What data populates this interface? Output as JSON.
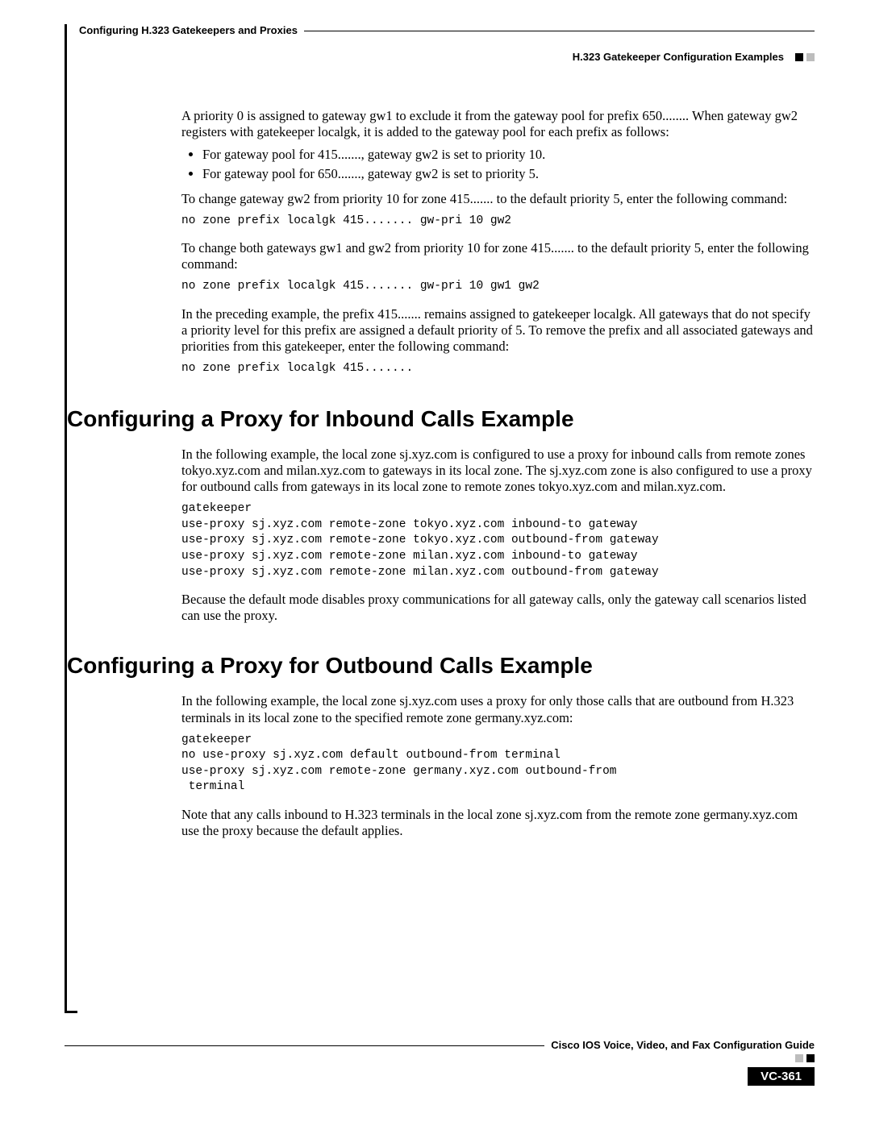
{
  "header": {
    "chapter_title": "Configuring H.323 Gatekeepers and Proxies",
    "section_title": "H.323 Gatekeeper Configuration Examples"
  },
  "body": {
    "p1": "A priority 0 is assigned to gateway gw1 to exclude it from the gateway pool for prefix 650........ When gateway gw2 registers with gatekeeper localgk, it is added to the gateway pool for each prefix as follows:",
    "bullets": [
      "For gateway pool for 415......., gateway gw2 is set to priority 10.",
      "For gateway pool for 650......., gateway gw2 is set to priority 5."
    ],
    "p2": "To change gateway gw2 from priority 10 for zone 415....... to the default priority 5, enter the following command:",
    "code1": "no zone prefix localgk 415....... gw-pri 10 gw2",
    "p3": "To change both gateways gw1 and gw2 from priority 10 for zone 415....... to the default priority 5, enter the following command:",
    "code2": "no zone prefix localgk 415....... gw-pri 10 gw1 gw2",
    "p4": "In the preceding example, the prefix 415....... remains assigned to gatekeeper localgk. All gateways that do not specify a priority level for this prefix are assigned a default priority of 5. To remove the prefix and all associated gateways and priorities from this gatekeeper, enter the following command:",
    "code3": "no zone prefix localgk 415......."
  },
  "section_inbound": {
    "heading": "Configuring a Proxy for Inbound Calls Example",
    "p1": "In the following example, the local zone sj.xyz.com is configured to use a proxy for inbound calls from remote zones tokyo.xyz.com and milan.xyz.com to gateways in its local zone. The sj.xyz.com zone is also configured to use a proxy for outbound calls from gateways in its local zone to remote zones tokyo.xyz.com and milan.xyz.com.",
    "code": "gatekeeper\nuse-proxy sj.xyz.com remote-zone tokyo.xyz.com inbound-to gateway\nuse-proxy sj.xyz.com remote-zone tokyo.xyz.com outbound-from gateway\nuse-proxy sj.xyz.com remote-zone milan.xyz.com inbound-to gateway\nuse-proxy sj.xyz.com remote-zone milan.xyz.com outbound-from gateway",
    "p2": "Because the default mode disables proxy communications for all gateway calls, only the gateway call scenarios listed can use the proxy."
  },
  "section_outbound": {
    "heading": "Configuring a Proxy for Outbound Calls Example",
    "p1": "In the following example, the local zone sj.xyz.com uses a proxy for only those calls that are outbound from H.323 terminals in its local zone to the specified remote zone germany.xyz.com:",
    "code": "gatekeeper\nno use-proxy sj.xyz.com default outbound-from terminal\nuse-proxy sj.xyz.com remote-zone germany.xyz.com outbound-from\n terminal",
    "p2": "Note that any calls inbound to H.323 terminals in the local zone sj.xyz.com from the remote zone germany.xyz.com use the proxy because the default applies."
  },
  "footer": {
    "guide_title": "Cisco IOS Voice, Video, and Fax Configuration Guide",
    "page_number": "VC-361"
  },
  "colors": {
    "text": "#000000",
    "bg": "#ffffff",
    "light_square": "#bdbdbd"
  },
  "fonts": {
    "body_family": "Times New Roman",
    "body_size_pt": 12,
    "heading_family": "Arial",
    "heading_size_pt": 21,
    "code_family": "Courier New",
    "code_size_pt": 11,
    "header_small_pt": 10
  }
}
